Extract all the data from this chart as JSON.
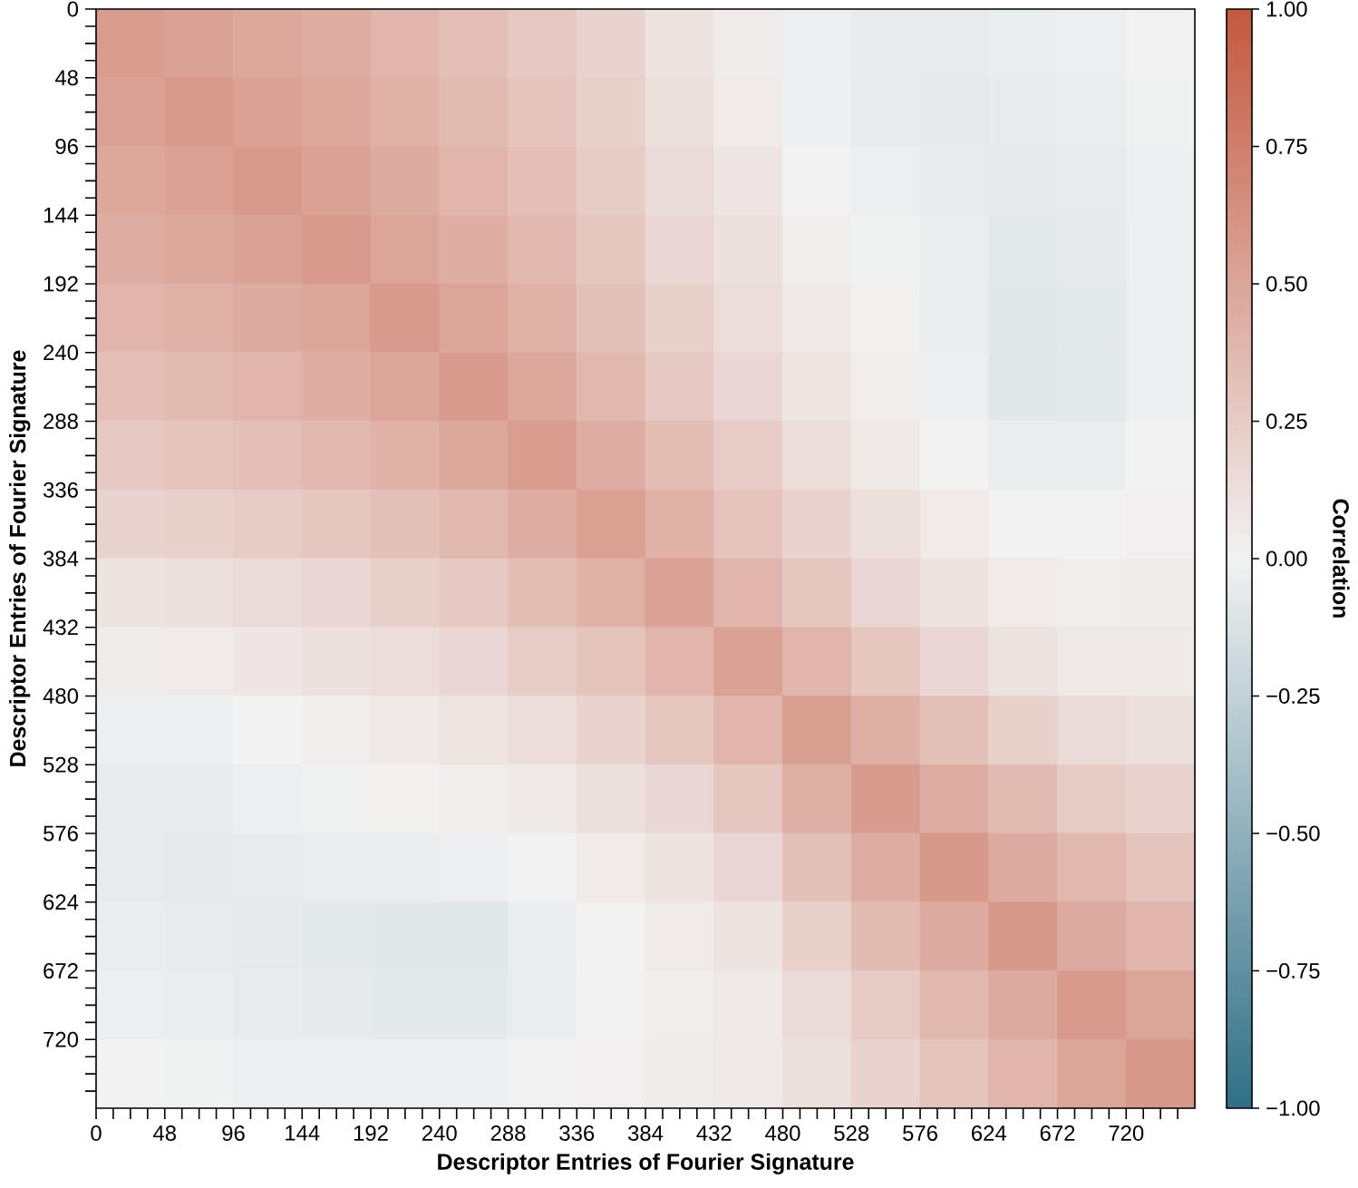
{
  "chart_data": {
    "type": "heatmap",
    "xlabel": "Descriptor Entries of Fourier Signature",
    "ylabel": "Descriptor Entries of Fourier Signature",
    "clabel": "Correlation",
    "x": [
      24,
      72,
      120,
      168,
      216,
      264,
      312,
      360,
      408,
      456,
      504,
      552,
      600,
      648,
      696,
      744
    ],
    "y": [
      24,
      72,
      120,
      168,
      216,
      264,
      312,
      360,
      408,
      456,
      504,
      552,
      600,
      648,
      696,
      744
    ],
    "cells": [
      [
        0.55,
        0.52,
        0.48,
        0.45,
        0.4,
        0.33,
        0.27,
        0.2,
        0.1,
        0.04,
        -0.03,
        -0.05,
        -0.05,
        -0.04,
        -0.03,
        0.0
      ],
      [
        0.52,
        0.57,
        0.52,
        0.48,
        0.42,
        0.36,
        0.3,
        0.22,
        0.12,
        0.05,
        -0.02,
        -0.05,
        -0.06,
        -0.05,
        -0.04,
        -0.01
      ],
      [
        0.48,
        0.52,
        0.57,
        0.52,
        0.46,
        0.4,
        0.33,
        0.25,
        0.15,
        0.08,
        0.0,
        -0.03,
        -0.05,
        -0.06,
        -0.05,
        -0.02
      ],
      [
        0.45,
        0.48,
        0.52,
        0.57,
        0.5,
        0.44,
        0.37,
        0.28,
        0.18,
        0.11,
        0.03,
        -0.01,
        -0.04,
        -0.07,
        -0.06,
        -0.02
      ],
      [
        0.4,
        0.42,
        0.46,
        0.5,
        0.57,
        0.5,
        0.42,
        0.32,
        0.22,
        0.14,
        0.06,
        0.01,
        -0.04,
        -0.08,
        -0.07,
        -0.02
      ],
      [
        0.33,
        0.36,
        0.4,
        0.44,
        0.5,
        0.56,
        0.48,
        0.38,
        0.27,
        0.18,
        0.09,
        0.03,
        -0.03,
        -0.08,
        -0.07,
        -0.02
      ],
      [
        0.27,
        0.3,
        0.33,
        0.37,
        0.42,
        0.48,
        0.55,
        0.45,
        0.34,
        0.24,
        0.14,
        0.06,
        0.0,
        -0.04,
        -0.04,
        0.0
      ],
      [
        0.2,
        0.22,
        0.25,
        0.28,
        0.32,
        0.38,
        0.45,
        0.53,
        0.42,
        0.3,
        0.2,
        0.12,
        0.05,
        0.0,
        0.0,
        0.02
      ],
      [
        0.1,
        0.12,
        0.15,
        0.18,
        0.22,
        0.27,
        0.34,
        0.42,
        0.52,
        0.4,
        0.28,
        0.18,
        0.1,
        0.05,
        0.03,
        0.04
      ],
      [
        0.04,
        0.05,
        0.08,
        0.11,
        0.14,
        0.18,
        0.24,
        0.3,
        0.4,
        0.52,
        0.4,
        0.28,
        0.18,
        0.1,
        0.06,
        0.06
      ],
      [
        -0.03,
        -0.02,
        0.0,
        0.03,
        0.06,
        0.09,
        0.14,
        0.2,
        0.28,
        0.4,
        0.54,
        0.43,
        0.32,
        0.22,
        0.15,
        0.12
      ],
      [
        -0.05,
        -0.05,
        -0.03,
        -0.01,
        0.01,
        0.03,
        0.06,
        0.12,
        0.18,
        0.28,
        0.43,
        0.56,
        0.45,
        0.35,
        0.26,
        0.2
      ],
      [
        -0.05,
        -0.06,
        -0.05,
        -0.04,
        -0.04,
        -0.03,
        0.0,
        0.05,
        0.1,
        0.18,
        0.32,
        0.45,
        0.58,
        0.47,
        0.38,
        0.3
      ],
      [
        -0.04,
        -0.05,
        -0.06,
        -0.07,
        -0.08,
        -0.08,
        -0.04,
        0.0,
        0.05,
        0.1,
        0.22,
        0.35,
        0.47,
        0.58,
        0.47,
        0.4
      ],
      [
        -0.03,
        -0.04,
        -0.05,
        -0.06,
        -0.07,
        -0.07,
        -0.04,
        0.0,
        0.03,
        0.06,
        0.15,
        0.26,
        0.38,
        0.47,
        0.57,
        0.5
      ],
      [
        0.0,
        -0.01,
        -0.02,
        -0.02,
        -0.02,
        -0.02,
        0.0,
        0.02,
        0.04,
        0.06,
        0.12,
        0.2,
        0.3,
        0.4,
        0.5,
        0.58
      ]
    ],
    "xlim": [
      0,
      768
    ],
    "ylim": [
      768,
      0
    ],
    "xticks": [
      0,
      {
        "value": 12,
        "label": null
      },
      {
        "value": 24,
        "label": null
      },
      {
        "value": 36,
        "label": null
      },
      48,
      {
        "value": 60,
        "label": null
      },
      {
        "value": 72,
        "label": null
      },
      {
        "value": 84,
        "label": null
      },
      96,
      {
        "value": 108,
        "label": null
      },
      {
        "value": 120,
        "label": null
      },
      {
        "value": 132,
        "label": null
      },
      144,
      {
        "value": 156,
        "label": null
      },
      {
        "value": 168,
        "label": null
      },
      {
        "value": 180,
        "label": null
      },
      192,
      {
        "value": 204,
        "label": null
      },
      {
        "value": 216,
        "label": null
      },
      {
        "value": 228,
        "label": null
      },
      240,
      {
        "value": 252,
        "label": null
      },
      {
        "value": 264,
        "label": null
      },
      {
        "value": 276,
        "label": null
      },
      288,
      {
        "value": 300,
        "label": null
      },
      {
        "value": 312,
        "label": null
      },
      {
        "value": 324,
        "label": null
      },
      336,
      {
        "value": 348,
        "label": null
      },
      {
        "value": 360,
        "label": null
      },
      {
        "value": 372,
        "label": null
      },
      384,
      {
        "value": 396,
        "label": null
      },
      {
        "value": 408,
        "label": null
      },
      {
        "value": 420,
        "label": null
      },
      432,
      {
        "value": 444,
        "label": null
      },
      {
        "value": 456,
        "label": null
      },
      {
        "value": 468,
        "label": null
      },
      480,
      {
        "value": 492,
        "label": null
      },
      {
        "value": 504,
        "label": null
      },
      {
        "value": 516,
        "label": null
      },
      528,
      {
        "value": 540,
        "label": null
      },
      {
        "value": 552,
        "label": null
      },
      {
        "value": 564,
        "label": null
      },
      576,
      {
        "value": 588,
        "label": null
      },
      {
        "value": 600,
        "label": null
      },
      {
        "value": 612,
        "label": null
      },
      624,
      {
        "value": 636,
        "label": null
      },
      {
        "value": 648,
        "label": null
      },
      {
        "value": 660,
        "label": null
      },
      672,
      {
        "value": 684,
        "label": null
      },
      {
        "value": 696,
        "label": null
      },
      {
        "value": 708,
        "label": null
      },
      720,
      {
        "value": 732,
        "label": null
      },
      {
        "value": 744,
        "label": null
      },
      {
        "value": 756,
        "label": null
      }
    ],
    "yticks": [
      0,
      {
        "value": 12,
        "label": null
      },
      {
        "value": 24,
        "label": null
      },
      {
        "value": 36,
        "label": null
      },
      48,
      {
        "value": 60,
        "label": null
      },
      {
        "value": 72,
        "label": null
      },
      {
        "value": 84,
        "label": null
      },
      96,
      {
        "value": 108,
        "label": null
      },
      {
        "value": 120,
        "label": null
      },
      {
        "value": 132,
        "label": null
      },
      144,
      {
        "value": 156,
        "label": null
      },
      {
        "value": 168,
        "label": null
      },
      {
        "value": 180,
        "label": null
      },
      192,
      {
        "value": 204,
        "label": null
      },
      {
        "value": 216,
        "label": null
      },
      {
        "value": 228,
        "label": null
      },
      240,
      {
        "value": 252,
        "label": null
      },
      {
        "value": 264,
        "label": null
      },
      {
        "value": 276,
        "label": null
      },
      288,
      {
        "value": 300,
        "label": null
      },
      {
        "value": 312,
        "label": null
      },
      {
        "value": 324,
        "label": null
      },
      336,
      {
        "value": 348,
        "label": null
      },
      {
        "value": 360,
        "label": null
      },
      {
        "value": 372,
        "label": null
      },
      384,
      {
        "value": 396,
        "label": null
      },
      {
        "value": 408,
        "label": null
      },
      {
        "value": 420,
        "label": null
      },
      432,
      {
        "value": 444,
        "label": null
      },
      {
        "value": 456,
        "label": null
      },
      {
        "value": 468,
        "label": null
      },
      480,
      {
        "value": 492,
        "label": null
      },
      {
        "value": 504,
        "label": null
      },
      {
        "value": 516,
        "label": null
      },
      528,
      {
        "value": 540,
        "label": null
      },
      {
        "value": 552,
        "label": null
      },
      {
        "value": 564,
        "label": null
      },
      576,
      {
        "value": 588,
        "label": null
      },
      {
        "value": 600,
        "label": null
      },
      {
        "value": 612,
        "label": null
      },
      624,
      {
        "value": 636,
        "label": null
      },
      {
        "value": 648,
        "label": null
      },
      {
        "value": 660,
        "label": null
      },
      672,
      {
        "value": 684,
        "label": null
      },
      {
        "value": 696,
        "label": null
      },
      {
        "value": 708,
        "label": null
      },
      720,
      {
        "value": 732,
        "label": null
      },
      {
        "value": 744,
        "label": null
      },
      {
        "value": 756,
        "label": null
      }
    ],
    "clim": [
      -1,
      1
    ],
    "cticks": [
      {
        "value": -1,
        "label": "−1.00"
      },
      {
        "value": -0.75,
        "label": "−0.75"
      },
      {
        "value": -0.5,
        "label": "−0.50"
      },
      {
        "value": -0.25,
        "label": "−0.25"
      },
      {
        "value": 0,
        "label": "0.00"
      },
      {
        "value": 0.25,
        "label": "0.25"
      },
      {
        "value": 0.5,
        "label": "0.50"
      },
      {
        "value": 0.75,
        "label": "0.75"
      },
      {
        "value": 1,
        "label": "1.00"
      }
    ]
  }
}
